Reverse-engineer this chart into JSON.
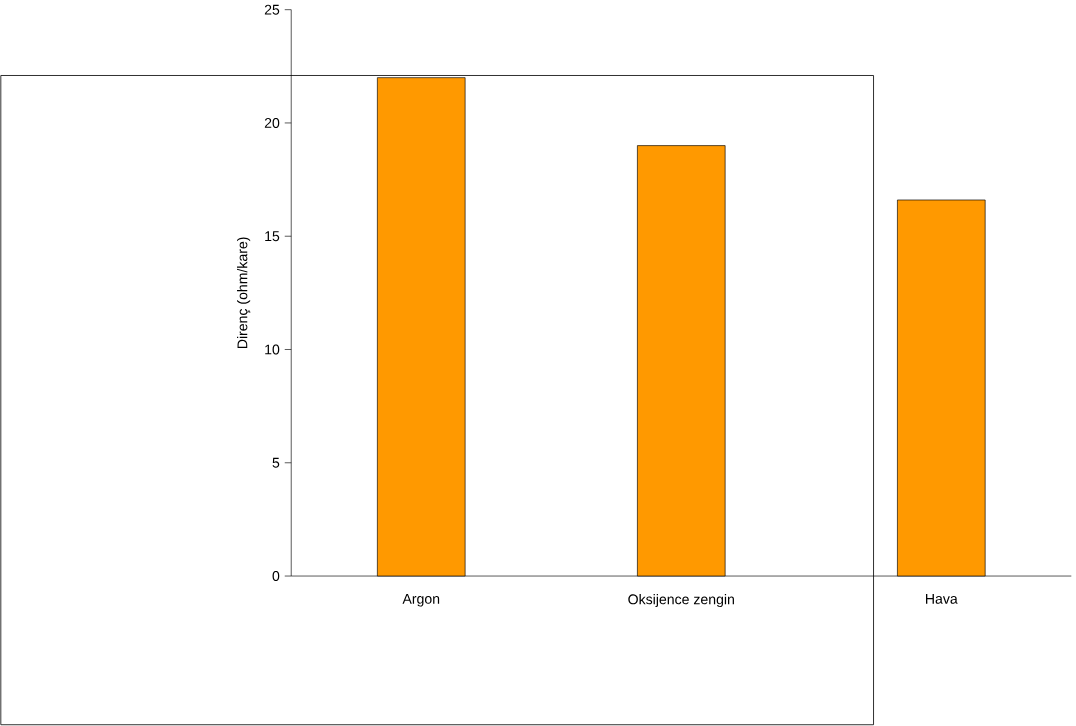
{
  "chart_data": {
    "type": "bar",
    "ylabel": "Direnç (ohm/kare)",
    "categories": [
      "Argon",
      "Oksijence zengin",
      "Hava"
    ],
    "values": [
      22,
      19,
      16.6
    ],
    "color": "#ff9900",
    "ylim": [
      0,
      25
    ],
    "yticks": [
      0,
      5,
      10,
      15,
      20,
      25
    ]
  }
}
